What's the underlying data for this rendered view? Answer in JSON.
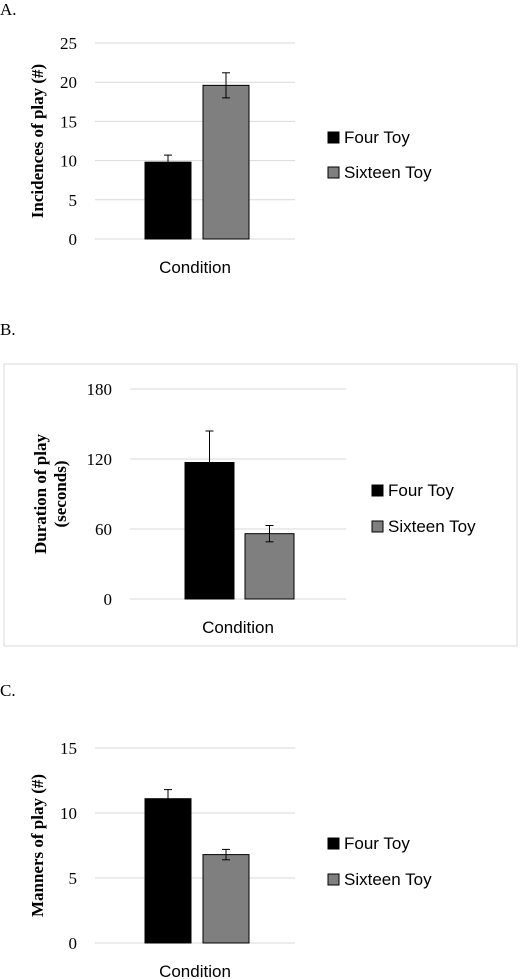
{
  "panel_labels": [
    "A.",
    "B.",
    "C."
  ],
  "colors": {
    "four_toy": "#000000",
    "sixteen_toy": "#7f7f7f",
    "grid": "#d9d9d9",
    "frame": "#d9d9d9"
  },
  "chart_data": [
    {
      "type": "bar",
      "categories": [
        "Condition"
      ],
      "series": [
        {
          "name": "Four Toy",
          "values": [
            9.8
          ],
          "error": [
            0.9
          ]
        },
        {
          "name": "Sixteen Toy",
          "values": [
            19.6
          ],
          "error": [
            1.6
          ]
        }
      ],
      "xlabel": "Condition",
      "ylabel": "Incidences of play (#)",
      "ylim": [
        0,
        25
      ],
      "yticks": [
        0,
        5,
        10,
        15,
        20,
        25
      ],
      "grid": true,
      "legend": "right"
    },
    {
      "type": "bar",
      "categories": [
        "Condition"
      ],
      "series": [
        {
          "name": "Four Toy",
          "values": [
            117
          ],
          "error": [
            27
          ]
        },
        {
          "name": "Sixteen Toy",
          "values": [
            56
          ],
          "error": [
            7
          ]
        }
      ],
      "xlabel": "Condition",
      "ylabel": [
        "Duration of play",
        "(seconds)"
      ],
      "ylim": [
        0,
        180
      ],
      "yticks": [
        0,
        60,
        120,
        180
      ],
      "grid": true,
      "legend": "right",
      "framed": true
    },
    {
      "type": "bar",
      "categories": [
        "Condition"
      ],
      "series": [
        {
          "name": "Four Toy",
          "values": [
            11.1
          ],
          "error": [
            0.7
          ]
        },
        {
          "name": "Sixteen Toy",
          "values": [
            6.8
          ],
          "error": [
            0.4
          ]
        }
      ],
      "xlabel": "Condition",
      "ylabel": "Manners of play (#)",
      "ylim": [
        0,
        15
      ],
      "yticks": [
        0,
        5,
        10,
        15
      ],
      "grid": true,
      "legend": "right"
    }
  ]
}
